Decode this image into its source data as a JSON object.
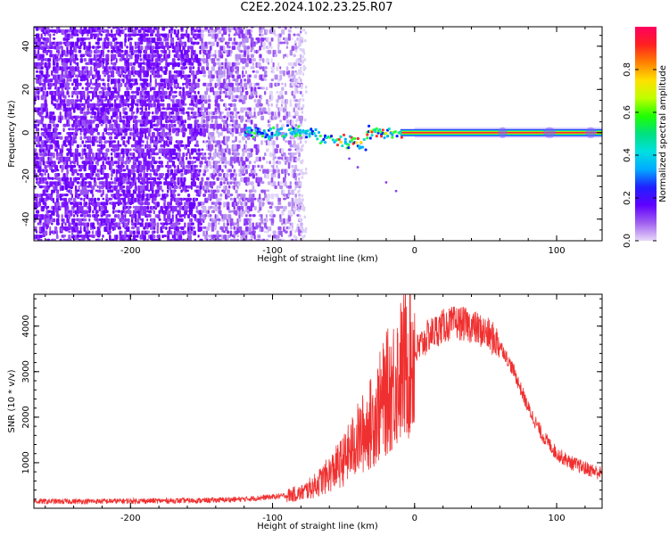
{
  "title": "C2E2.2024.102.23.25.R07",
  "chart_data": [
    {
      "type": "heatmap",
      "xlabel": "Height of straight line (km)",
      "ylabel": "Frequency (Hz)",
      "xlim": [
        -268,
        132
      ],
      "ylim": [
        -50,
        49
      ],
      "xticks": [
        -200,
        -100,
        0,
        100
      ],
      "yticks": [
        -40,
        -20,
        0,
        20,
        40
      ],
      "colorbar": {
        "label": "Normalized spectral amplitude",
        "range": [
          0,
          1
        ],
        "ticks": [
          0.0,
          0.2,
          0.4,
          0.6,
          0.8
        ],
        "colormap": [
          "#e8d8f8",
          "#a060f0",
          "#6000ff",
          "#2020ff",
          "#00aaff",
          "#00e0e0",
          "#00e080",
          "#20ff00",
          "#c0ff00",
          "#ffe000",
          "#ff8000",
          "#ff2020",
          "#ff0060"
        ]
      },
      "features": [
        {
          "name": "noise",
          "x_range": [
            -268,
            -80
          ],
          "freq_range": [
            -50,
            49
          ],
          "amplitude": 0.1
        },
        {
          "name": "line",
          "x_range": [
            -120,
            132
          ],
          "freq": 0,
          "amplitude": 0.9
        }
      ]
    },
    {
      "type": "line",
      "xlabel": "Height of straight line (km)",
      "ylabel": "SNR (10 * v/v)",
      "xlim": [
        -268,
        132
      ],
      "ylim": [
        0,
        4700
      ],
      "xticks": [
        -200,
        -100,
        0,
        100
      ],
      "yticks": [
        1000,
        2000,
        3000,
        4000
      ],
      "color": "#f03030",
      "series": [
        {
          "x": [
            -268,
            -240,
            -200,
            -150,
            -120,
            -100,
            -90,
            -80,
            -70,
            -60,
            -50,
            -40,
            -30,
            -20,
            -10,
            0,
            10,
            20,
            30,
            40,
            50,
            60,
            70,
            80,
            90,
            100,
            110,
            120,
            132
          ],
          "values": [
            150,
            150,
            160,
            170,
            200,
            250,
            280,
            330,
            500,
            750,
            1050,
            1500,
            1900,
            2500,
            3000,
            3400,
            3800,
            4000,
            4080,
            4000,
            3850,
            3600,
            3000,
            2200,
            1600,
            1200,
            1000,
            880,
            760
          ]
        }
      ]
    }
  ]
}
